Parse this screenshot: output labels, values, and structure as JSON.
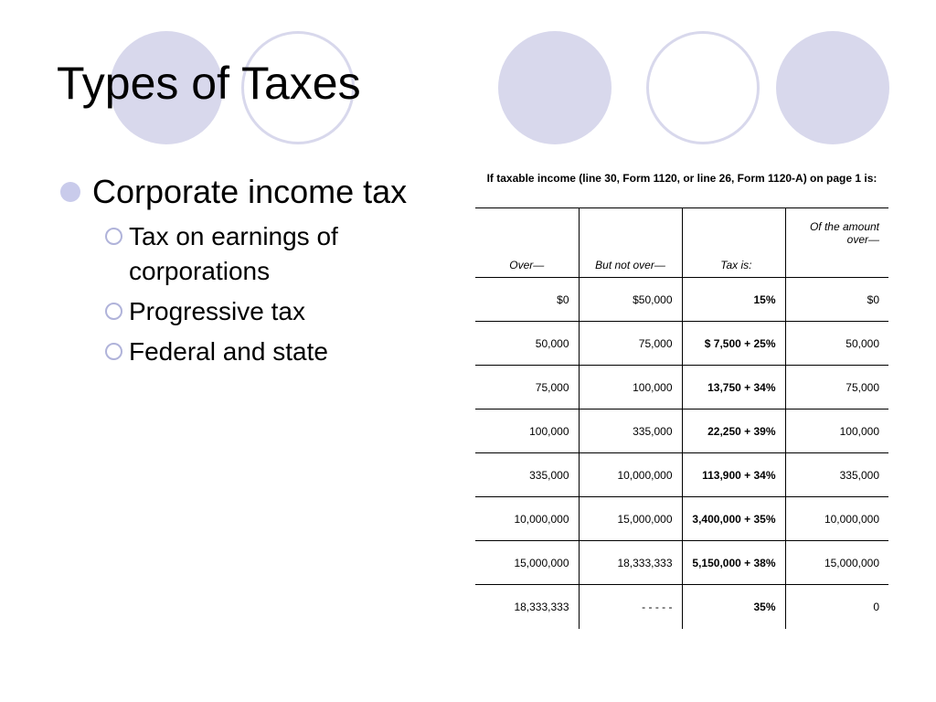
{
  "slide": {
    "title": "Types of Taxes",
    "bullets": {
      "main": "Corporate income tax",
      "sub": [
        "Tax on earnings of corporations",
        "Progressive tax",
        "Federal and state"
      ]
    }
  },
  "tax_table": {
    "caption": "If taxable income (line 30, Form 1120, or line 26, Form 1120-A) on page 1 is:",
    "headers": [
      "Over—",
      "But not over—",
      "Tax is:",
      "Of the amount over—"
    ],
    "rows": [
      [
        "$0",
        "$50,000",
        "15%",
        "$0"
      ],
      [
        "50,000",
        "75,000",
        "$ 7,500 + 25%",
        "50,000"
      ],
      [
        "75,000",
        "100,000",
        "13,750 + 34%",
        "75,000"
      ],
      [
        "100,000",
        "335,000",
        "22,250 + 39%",
        "100,000"
      ],
      [
        "335,000",
        "10,000,000",
        "113,900 + 34%",
        "335,000"
      ],
      [
        "10,000,000",
        "15,000,000",
        "3,400,000 + 35%",
        "10,000,000"
      ],
      [
        "15,000,000",
        "18,333,333",
        "5,150,000 + 38%",
        "15,000,000"
      ],
      [
        "18,333,333",
        "- - - - -",
        "35%",
        "0"
      ]
    ]
  },
  "colors": {
    "circle_fill": "#d8d8ec",
    "bullet": "#c9cbeb"
  }
}
